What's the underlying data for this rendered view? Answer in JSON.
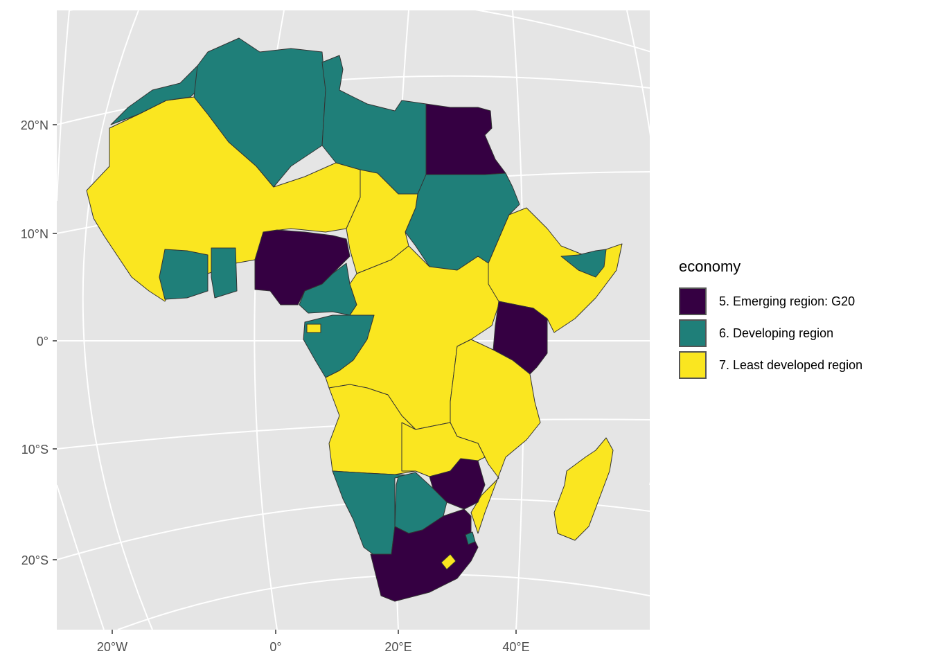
{
  "map": {
    "x_ticks": [
      "20°W",
      "0°",
      "20°E",
      "40°E"
    ],
    "y_ticks": [
      "20°N",
      "10°N",
      "0°",
      "10°S",
      "20°S"
    ],
    "panel_color": "#e5e5e5",
    "grid_color": "#ffffff",
    "border_color": "#333333"
  },
  "legend": {
    "title": "economy",
    "items": [
      {
        "label": "5. Emerging region: G20",
        "color": "#350042"
      },
      {
        "label": "6. Developing region",
        "color": "#1f7f79"
      },
      {
        "label": "7. Least developed region",
        "color": "#fae620"
      }
    ]
  }
}
